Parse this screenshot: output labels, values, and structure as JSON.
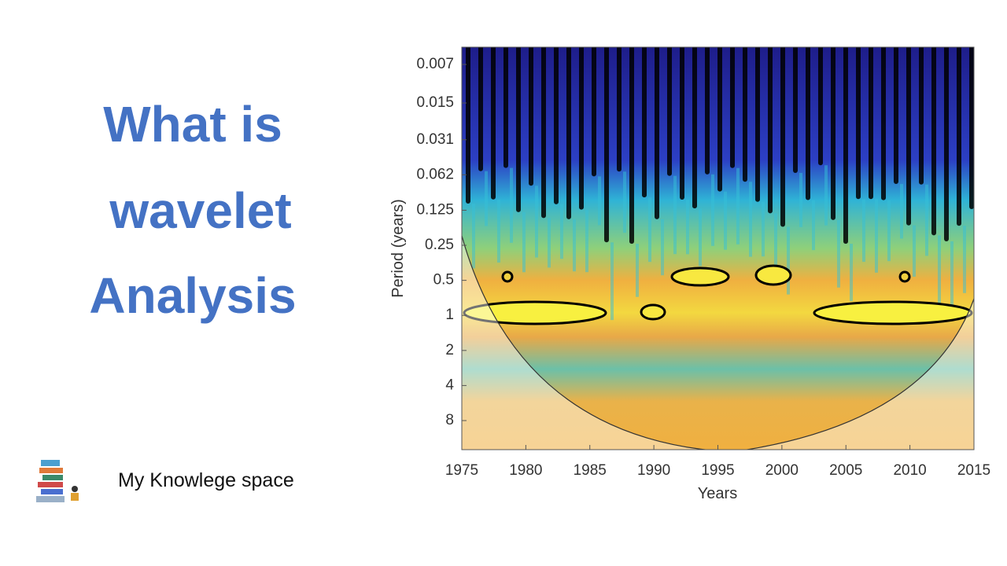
{
  "headline": {
    "lines": [
      "What is",
      "wavelet",
      "Analysis"
    ]
  },
  "brand": "My Knowlege space",
  "figure": {
    "x_label": "Years",
    "y_label": "Period (years)",
    "xticks": [
      1975,
      1980,
      1985,
      1990,
      1995,
      2000,
      2005,
      2010,
      2015
    ],
    "yticks": [
      0.007,
      0.015,
      0.031,
      0.062,
      0.125,
      0.25,
      0.5,
      1,
      2,
      4,
      8
    ]
  }
}
